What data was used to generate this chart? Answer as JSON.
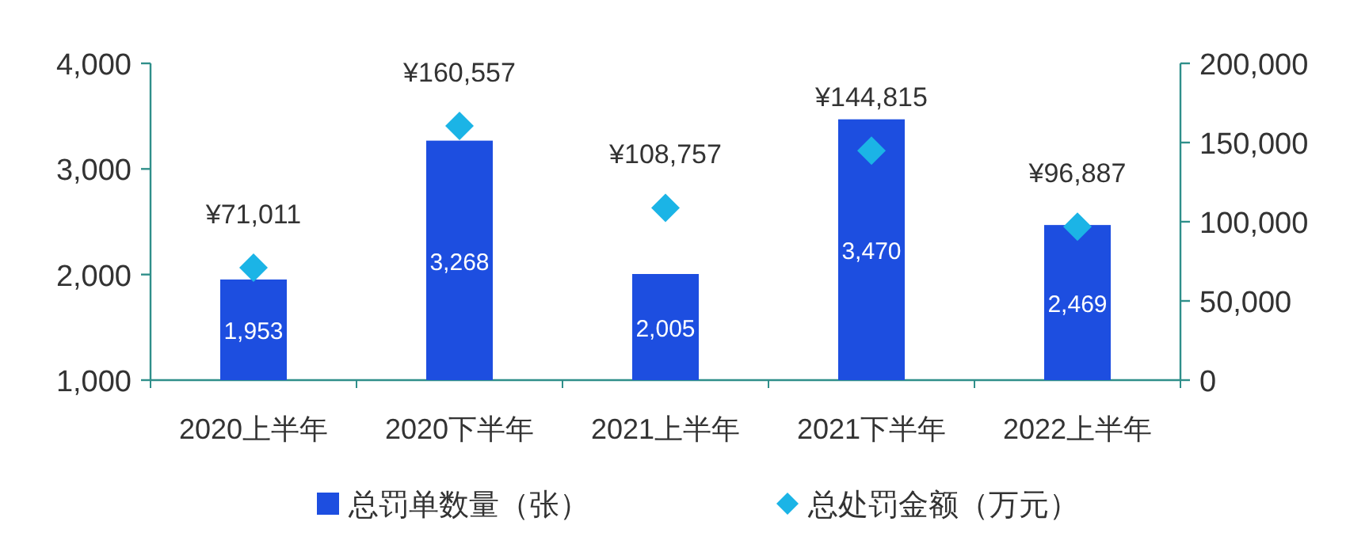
{
  "chart_data": {
    "type": "bar",
    "categories": [
      "2020上半年",
      "2020下半年",
      "2021上半年",
      "2021下半年",
      "2022上半年"
    ],
    "ylim": [
      1000,
      4000
    ],
    "yticks": [
      {
        "value": 1000,
        "label": "1,000"
      },
      {
        "value": 2000,
        "label": "2,000"
      },
      {
        "value": 3000,
        "label": "3,000"
      },
      {
        "value": 4000,
        "label": "4,000"
      }
    ],
    "y2lim": [
      0,
      200000
    ],
    "y2ticks": [
      0,
      {
        "value": 50000,
        "label": "50,000"
      },
      {
        "value": 100000,
        "label": "100,000"
      },
      {
        "value": 150000,
        "label": "150,000"
      },
      {
        "value": 200000,
        "label": "200,000"
      }
    ],
    "legend": "bottom",
    "series": [
      {
        "name": "总罚单数量（张）",
        "color": "#1d4ee0",
        "values": [
          1953,
          3268,
          2005,
          3470,
          2469
        ],
        "value_labels": [
          "1,953",
          "3,268",
          "2,005",
          "3,470",
          "2,469"
        ]
      },
      {
        "name": "总处罚金额（万元）",
        "type": "scatter",
        "axis": "y2",
        "marker": "diamond",
        "color": "#1bb4e6",
        "values": [
          71011,
          160557,
          108757,
          144815,
          96887
        ],
        "value_labels": [
          "¥71,011",
          "¥160,557",
          "¥108,757",
          "¥144,815",
          "¥96,887"
        ]
      }
    ]
  }
}
